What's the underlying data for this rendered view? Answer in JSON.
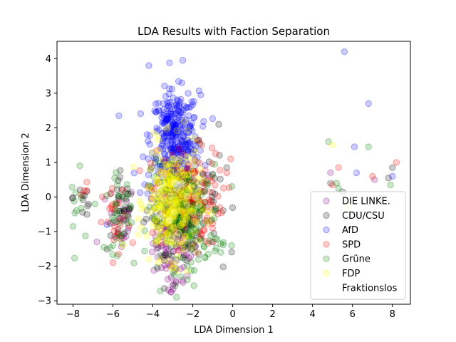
{
  "chart_data": {
    "type": "scatter",
    "title": "LDA Results with Faction Separation",
    "xlabel": "LDA Dimension 1",
    "ylabel": "LDA Dimension 2",
    "xlim": [
      -8.8,
      8.9
    ],
    "ylim": [
      -3.1,
      4.5
    ],
    "xticks": [
      -8,
      -6,
      -4,
      -2,
      0,
      2,
      4,
      6,
      8
    ],
    "yticks": [
      -3,
      -2,
      -1,
      0,
      1,
      2,
      3,
      4
    ],
    "grid": false,
    "legend_position": "lower-right",
    "marker_alpha": 0.2,
    "series": [
      {
        "name": "DIE LINKE.",
        "color": "#800080",
        "clusters": [
          {
            "cx": -2.9,
            "cy": -1.3,
            "sx": 0.55,
            "sy": 0.55,
            "n": 120
          },
          {
            "cx": -5.6,
            "cy": -0.6,
            "sx": 0.35,
            "sy": 0.5,
            "n": 25
          },
          {
            "cx": -2.9,
            "cy": -2.5,
            "sx": 0.35,
            "sy": 0.15,
            "n": 8
          }
        ],
        "points": [
          {
            "x": 4.9,
            "y": 0.7
          },
          {
            "x": 7.1,
            "y": 0.5
          },
          {
            "x": -6.8,
            "y": -1.3
          },
          {
            "x": -1.9,
            "y": -1.6
          },
          {
            "x": -3.1,
            "y": -2.75
          }
        ]
      },
      {
        "name": "CDU/CSU",
        "color": "#000000",
        "clusters": [
          {
            "cx": -2.5,
            "cy": -0.1,
            "sx": 0.9,
            "sy": 0.75,
            "n": 170
          },
          {
            "cx": -5.6,
            "cy": -0.4,
            "sx": 0.35,
            "sy": 0.6,
            "n": 30
          },
          {
            "cx": -7.5,
            "cy": 0.0,
            "sx": 0.25,
            "sy": 0.4,
            "n": 10
          }
        ],
        "points": [
          {
            "x": -0.7,
            "y": 2.1
          },
          {
            "x": 4.9,
            "y": 0.4
          },
          {
            "x": 5.5,
            "y": 0.15
          },
          {
            "x": 7.8,
            "y": 0.55
          },
          {
            "x": 8.0,
            "y": 0.85
          },
          {
            "x": -7.3,
            "y": -0.5
          },
          {
            "x": -0.3,
            "y": 0.85
          },
          {
            "x": -1.6,
            "y": -1.2
          }
        ]
      },
      {
        "name": "AfD",
        "color": "#0000ff",
        "clusters": [
          {
            "cx": -2.9,
            "cy": 1.75,
            "sx": 0.6,
            "sy": 0.65,
            "n": 300
          },
          {
            "cx": -2.9,
            "cy": 0.6,
            "sx": 0.7,
            "sy": 0.4,
            "n": 50
          }
        ],
        "points": [
          {
            "x": -4.2,
            "y": 3.8
          },
          {
            "x": -2.5,
            "y": 3.95
          },
          {
            "x": 5.6,
            "y": 4.2
          },
          {
            "x": 6.8,
            "y": 2.7
          },
          {
            "x": 6.1,
            "y": 1.45
          },
          {
            "x": 6.2,
            "y": 0.7
          },
          {
            "x": -5.7,
            "y": 2.35
          },
          {
            "x": -1.6,
            "y": 2.95
          },
          {
            "x": -6.3,
            "y": -0.8
          },
          {
            "x": 8.0,
            "y": 0.6
          }
        ]
      },
      {
        "name": "SPD",
        "color": "#ff0000",
        "clusters": [
          {
            "cx": -2.3,
            "cy": 0.0,
            "sx": 0.9,
            "sy": 0.7,
            "n": 150
          },
          {
            "cx": -5.8,
            "cy": -0.8,
            "sx": 0.35,
            "sy": 0.55,
            "n": 25
          },
          {
            "cx": -7.5,
            "cy": 0.1,
            "sx": 0.2,
            "sy": 0.2,
            "n": 4
          }
        ],
        "points": [
          {
            "x": 5.3,
            "y": 0.85
          },
          {
            "x": 5.0,
            "y": 0.35
          },
          {
            "x": 8.2,
            "y": 1.0
          },
          {
            "x": 7.0,
            "y": 0.6
          },
          {
            "x": -6.0,
            "y": -1.9
          },
          {
            "x": -0.1,
            "y": 1.1
          },
          {
            "x": -2.7,
            "y": 1.4
          }
        ]
      },
      {
        "name": "Grüne",
        "color": "#008000",
        "clusters": [
          {
            "cx": -2.4,
            "cy": -0.6,
            "sx": 0.9,
            "sy": 0.75,
            "n": 200
          },
          {
            "cx": -5.7,
            "cy": -0.5,
            "sx": 0.35,
            "sy": 0.55,
            "n": 30
          },
          {
            "cx": -7.6,
            "cy": -0.3,
            "sx": 0.25,
            "sy": 0.5,
            "n": 10
          }
        ],
        "points": [
          {
            "x": 4.8,
            "y": 1.6
          },
          {
            "x": 5.3,
            "y": 0.25
          },
          {
            "x": 6.8,
            "y": 1.45
          },
          {
            "x": 7.9,
            "y": 0.35
          },
          {
            "x": 5.2,
            "y": 0.4
          },
          {
            "x": -8.0,
            "y": -0.85
          },
          {
            "x": -0.6,
            "y": -1.35
          },
          {
            "x": -2.6,
            "y": -2.3
          },
          {
            "x": -0.6,
            "y": -1.6
          },
          {
            "x": -6.9,
            "y": -0.2
          }
        ]
      },
      {
        "name": "FDP",
        "color": "#ffff00",
        "clusters": [
          {
            "cx": -3.0,
            "cy": -0.15,
            "sx": 0.65,
            "sy": 0.8,
            "n": 320
          }
        ],
        "points": [
          {
            "x": 5.0,
            "y": 1.5
          },
          {
            "x": 5.7,
            "y": -0.3
          },
          {
            "x": -4.2,
            "y": -1.8
          },
          {
            "x": -5.5,
            "y": -1.4
          }
        ]
      },
      {
        "name": "Fraktionslos",
        "color": "#ffffff",
        "clusters": [
          {
            "cx": -2.9,
            "cy": 0.2,
            "sx": 0.8,
            "sy": 0.9,
            "n": 30
          }
        ],
        "points": [
          {
            "x": -7.7,
            "y": 1.35
          },
          {
            "x": -7.5,
            "y": -1.6
          },
          {
            "x": 5.3,
            "y": 1.45
          },
          {
            "x": 6.0,
            "y": 0.75
          },
          {
            "x": 4.9,
            "y": 0.55
          }
        ]
      }
    ]
  }
}
